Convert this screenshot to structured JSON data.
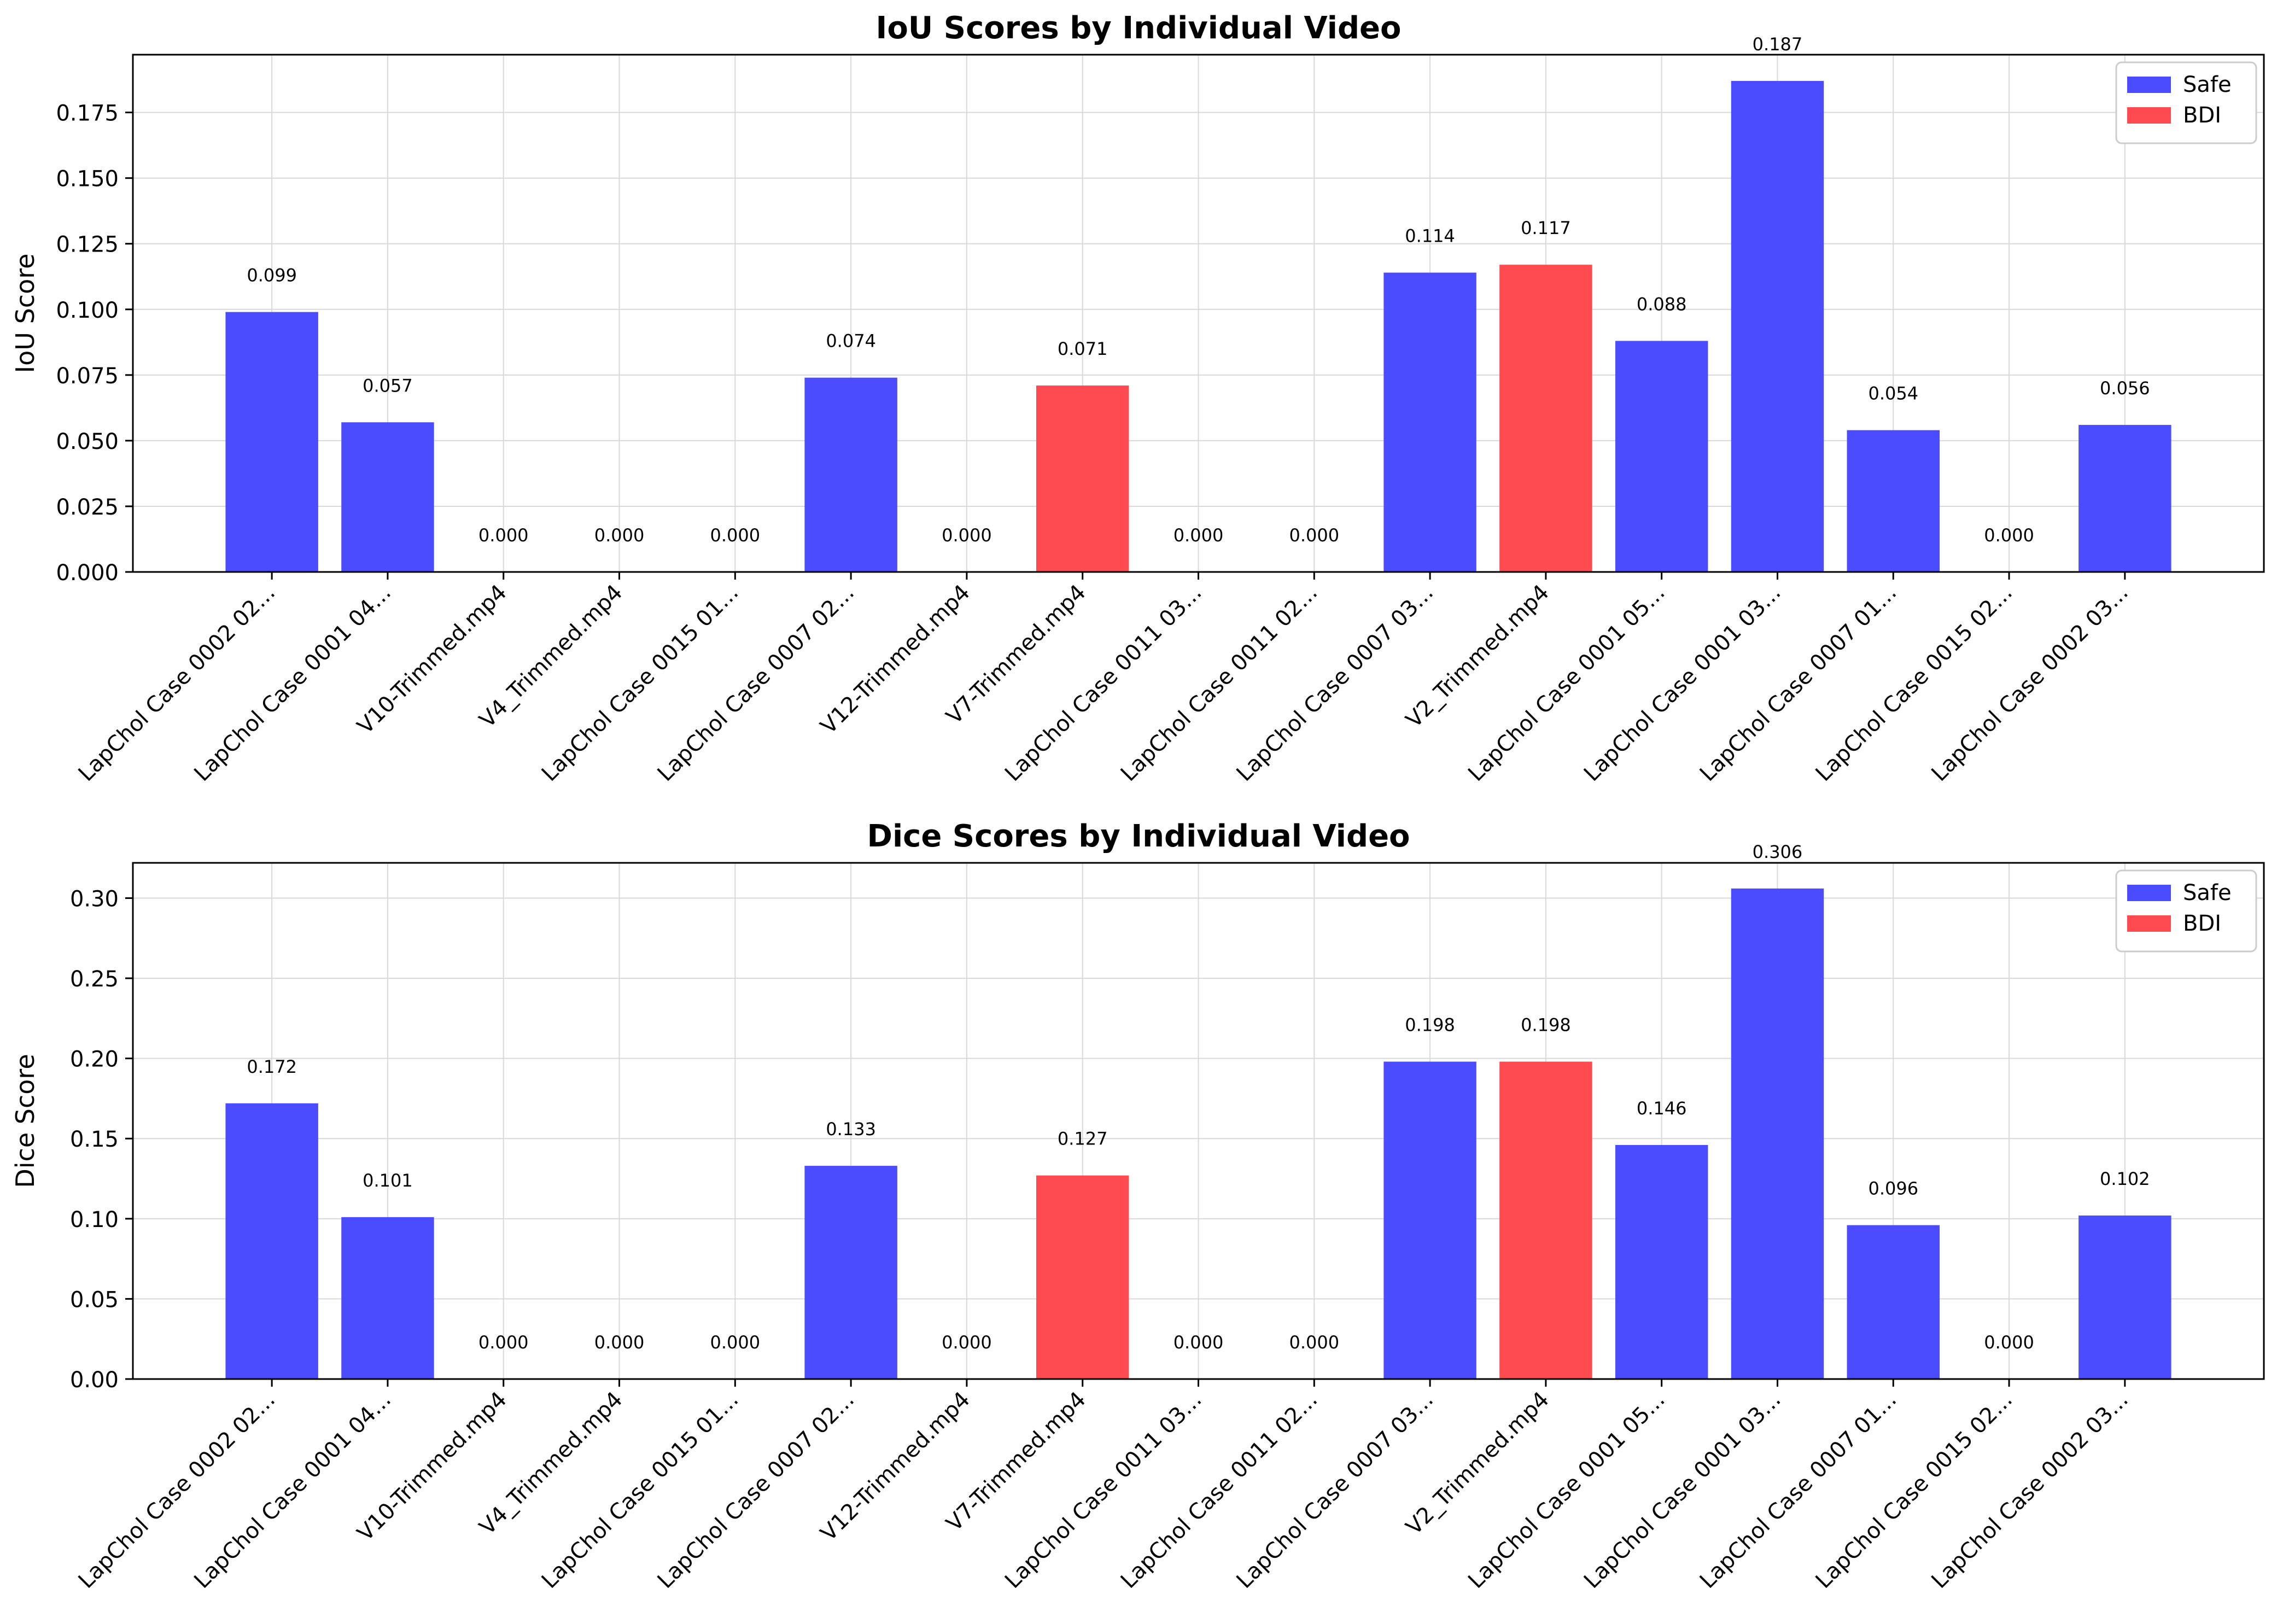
{
  "colors": {
    "safe": "#4b4bff",
    "bdi": "#ff4b4f",
    "axis": "#000000",
    "grid": "#d9d9d9"
  },
  "categories": [
    "LapChol Case 0002 02...",
    "LapChol Case 0001 04...",
    "V10-Trimmed.mp4",
    "V4_Trimmed.mp4",
    "LapChol Case 0015 01...",
    "LapChol Case 0007 02...",
    "V12-Trimmed.mp4",
    "V7-Trimmed.mp4",
    "LapChol Case 0011 03...",
    "LapChol Case 0011 02...",
    "LapChol Case 0007 03...",
    "V2_Trimmed.mp4",
    "LapChol Case 0001 05...",
    "LapChol Case 0001 03...",
    "LapChol Case 0007 01...",
    "LapChol Case 0015 02...",
    "LapChol Case 0002 03..."
  ],
  "chart_data": [
    {
      "type": "bar",
      "title": "IoU Scores by Individual Video",
      "xlabel": "",
      "ylabel": "IoU Score",
      "ylim": [
        0,
        0.197
      ],
      "yticks": [
        "0.000",
        "0.025",
        "0.050",
        "0.075",
        "0.100",
        "0.125",
        "0.150",
        "0.175"
      ],
      "ytick_values": [
        0,
        0.025,
        0.05,
        0.075,
        0.1,
        0.125,
        0.15,
        0.175
      ],
      "grid": true,
      "legend_position": "top-right",
      "legend": [
        {
          "name": "Safe",
          "color": "#4b4bff"
        },
        {
          "name": "BDI",
          "color": "#ff4b4f"
        }
      ],
      "values": [
        0.099,
        0.057,
        0.0,
        0.0,
        0.0,
        0.074,
        0.0,
        0.071,
        0.0,
        0.0,
        0.114,
        0.117,
        0.088,
        0.187,
        0.054,
        0.0,
        0.056
      ],
      "value_labels": [
        "0.099",
        "0.057",
        "0.000",
        "0.000",
        "0.000",
        "0.074",
        "0.000",
        "0.071",
        "0.000",
        "0.000",
        "0.114",
        "0.117",
        "0.088",
        "0.187",
        "0.054",
        "0.000",
        "0.056"
      ],
      "groups": [
        "Safe",
        "Safe",
        "Safe",
        "Safe",
        "Safe",
        "Safe",
        "Safe",
        "BDI",
        "Safe",
        "Safe",
        "Safe",
        "BDI",
        "Safe",
        "Safe",
        "Safe",
        "Safe",
        "Safe"
      ]
    },
    {
      "type": "bar",
      "title": "Dice Scores by Individual Video",
      "xlabel": "",
      "ylabel": "Dice Score",
      "ylim": [
        0,
        0.322
      ],
      "yticks": [
        "0.00",
        "0.05",
        "0.10",
        "0.15",
        "0.20",
        "0.25",
        "0.30"
      ],
      "ytick_values": [
        0,
        0.05,
        0.1,
        0.15,
        0.2,
        0.25,
        0.3
      ],
      "grid": true,
      "legend_position": "top-right",
      "legend": [
        {
          "name": "Safe",
          "color": "#4b4bff"
        },
        {
          "name": "BDI",
          "color": "#ff4b4f"
        }
      ],
      "values": [
        0.172,
        0.101,
        0.0,
        0.0,
        0.0,
        0.133,
        0.0,
        0.127,
        0.0,
        0.0,
        0.198,
        0.198,
        0.146,
        0.306,
        0.096,
        0.0,
        0.102
      ],
      "value_labels": [
        "0.172",
        "0.101",
        "0.000",
        "0.000",
        "0.000",
        "0.133",
        "0.000",
        "0.127",
        "0.000",
        "0.000",
        "0.198",
        "0.198",
        "0.146",
        "0.306",
        "0.096",
        "0.000",
        "0.102"
      ],
      "groups": [
        "Safe",
        "Safe",
        "Safe",
        "Safe",
        "Safe",
        "Safe",
        "Safe",
        "BDI",
        "Safe",
        "Safe",
        "Safe",
        "BDI",
        "Safe",
        "Safe",
        "Safe",
        "Safe",
        "Safe"
      ]
    }
  ]
}
